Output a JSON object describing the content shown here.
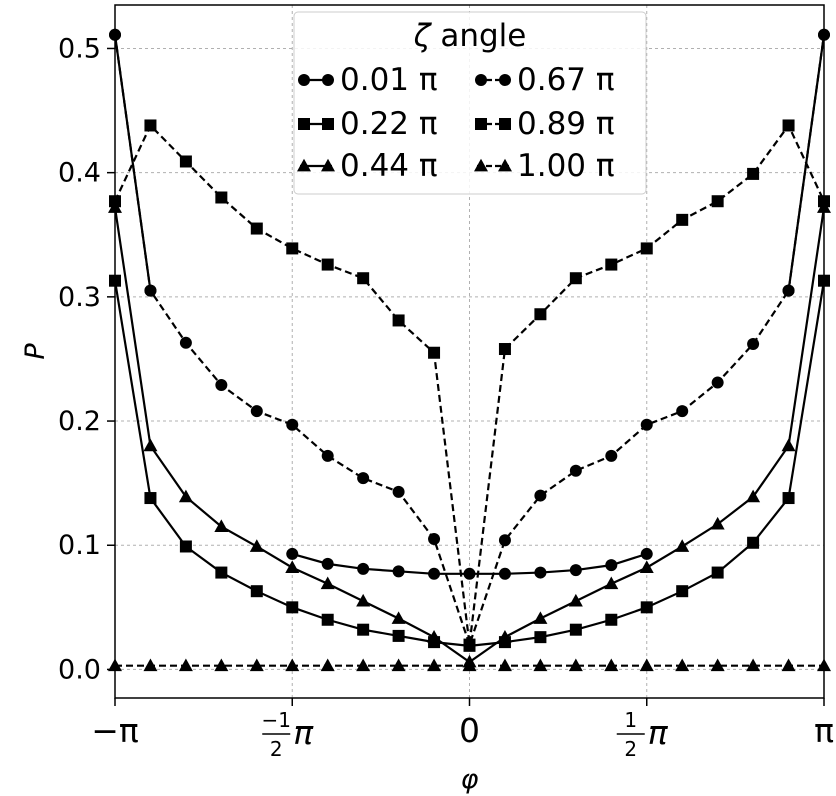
{
  "chart_data": {
    "type": "line",
    "xlabel": "φ",
    "ylabel": "P",
    "xlim": [
      -3.14159,
      3.14159
    ],
    "ylim": [
      -0.023,
      0.535
    ],
    "grid": true,
    "x_ticks": [
      {
        "value": -3.14159,
        "label": "−π",
        "kind": "plain"
      },
      {
        "value": -1.5708,
        "label": "π",
        "num": "−1",
        "den": "2",
        "kind": "frac"
      },
      {
        "value": 0,
        "label": "0",
        "kind": "plain"
      },
      {
        "value": 1.5708,
        "label": "π",
        "num": "1",
        "den": "2",
        "kind": "frac"
      },
      {
        "value": 3.14159,
        "label": "π",
        "kind": "plain"
      }
    ],
    "y_ticks": [
      {
        "value": 0.0,
        "label": "0.0"
      },
      {
        "value": 0.1,
        "label": "0.1"
      },
      {
        "value": 0.2,
        "label": "0.2"
      },
      {
        "value": 0.3,
        "label": "0.3"
      },
      {
        "value": 0.4,
        "label": "0.4"
      },
      {
        "value": 0.5,
        "label": "0.5"
      }
    ],
    "x": [
      -3.14159,
      -2.82743,
      -2.51327,
      -2.19911,
      -1.88496,
      -1.5708,
      -1.25664,
      -0.94248,
      -0.62832,
      -0.31416,
      0,
      0.31416,
      0.62832,
      0.94248,
      1.25664,
      1.5708,
      1.88496,
      2.19911,
      2.51327,
      2.82743,
      3.14159
    ],
    "series": [
      {
        "name": "0.01 π",
        "marker": "circle",
        "linestyle": "solid",
        "values": [
          0.511,
          0.305,
          null,
          null,
          null,
          0.093,
          0.085,
          0.081,
          0.079,
          0.077,
          0.077,
          0.077,
          0.078,
          0.08,
          0.084,
          0.093,
          null,
          null,
          null,
          0.305,
          0.511
        ]
      },
      {
        "name": "0.22 π",
        "marker": "square",
        "linestyle": "solid",
        "values": [
          0.313,
          0.138,
          0.099,
          0.078,
          0.063,
          0.05,
          0.04,
          0.032,
          0.027,
          0.022,
          0.019,
          0.022,
          0.026,
          0.032,
          0.04,
          0.05,
          0.063,
          0.078,
          0.102,
          0.138,
          0.313
        ]
      },
      {
        "name": "0.44 π",
        "marker": "triangle",
        "linestyle": "solid",
        "values": [
          0.372,
          0.18,
          0.139,
          0.115,
          0.099,
          0.082,
          0.069,
          0.055,
          0.041,
          0.026,
          0.006,
          0.026,
          0.041,
          0.055,
          0.069,
          0.082,
          0.099,
          0.117,
          0.139,
          0.18,
          0.372
        ]
      },
      {
        "name": "0.67 π",
        "marker": "circle",
        "linestyle": "dashed",
        "values": [
          0.511,
          0.305,
          0.263,
          0.229,
          0.208,
          0.197,
          0.172,
          0.154,
          0.143,
          0.105,
          0.02,
          0.104,
          0.14,
          0.16,
          0.172,
          0.197,
          0.208,
          0.231,
          0.262,
          0.305,
          0.511
        ]
      },
      {
        "name": "0.89 π",
        "marker": "square",
        "linestyle": "dashed",
        "values": [
          0.377,
          0.438,
          0.409,
          0.38,
          0.355,
          0.339,
          0.326,
          0.315,
          0.281,
          0.255,
          0.02,
          0.258,
          0.286,
          0.315,
          0.326,
          0.339,
          0.362,
          0.377,
          0.399,
          0.438,
          0.377
        ]
      },
      {
        "name": "1.00 π",
        "marker": "triangle",
        "linestyle": "dashed",
        "values": [
          0.003,
          0.003,
          0.003,
          0.003,
          0.003,
          0.003,
          0.003,
          0.003,
          0.003,
          0.003,
          0.003,
          0.003,
          0.003,
          0.003,
          0.003,
          0.003,
          0.003,
          0.003,
          0.003,
          0.003,
          0.003
        ]
      }
    ],
    "legend": {
      "title_symbol": "ζ",
      "title_text": " angle",
      "placement": "upper-center",
      "columns": 2
    },
    "colors": {
      "line": "#000000",
      "grid": "#b0b0b0",
      "background": "#ffffff"
    }
  }
}
